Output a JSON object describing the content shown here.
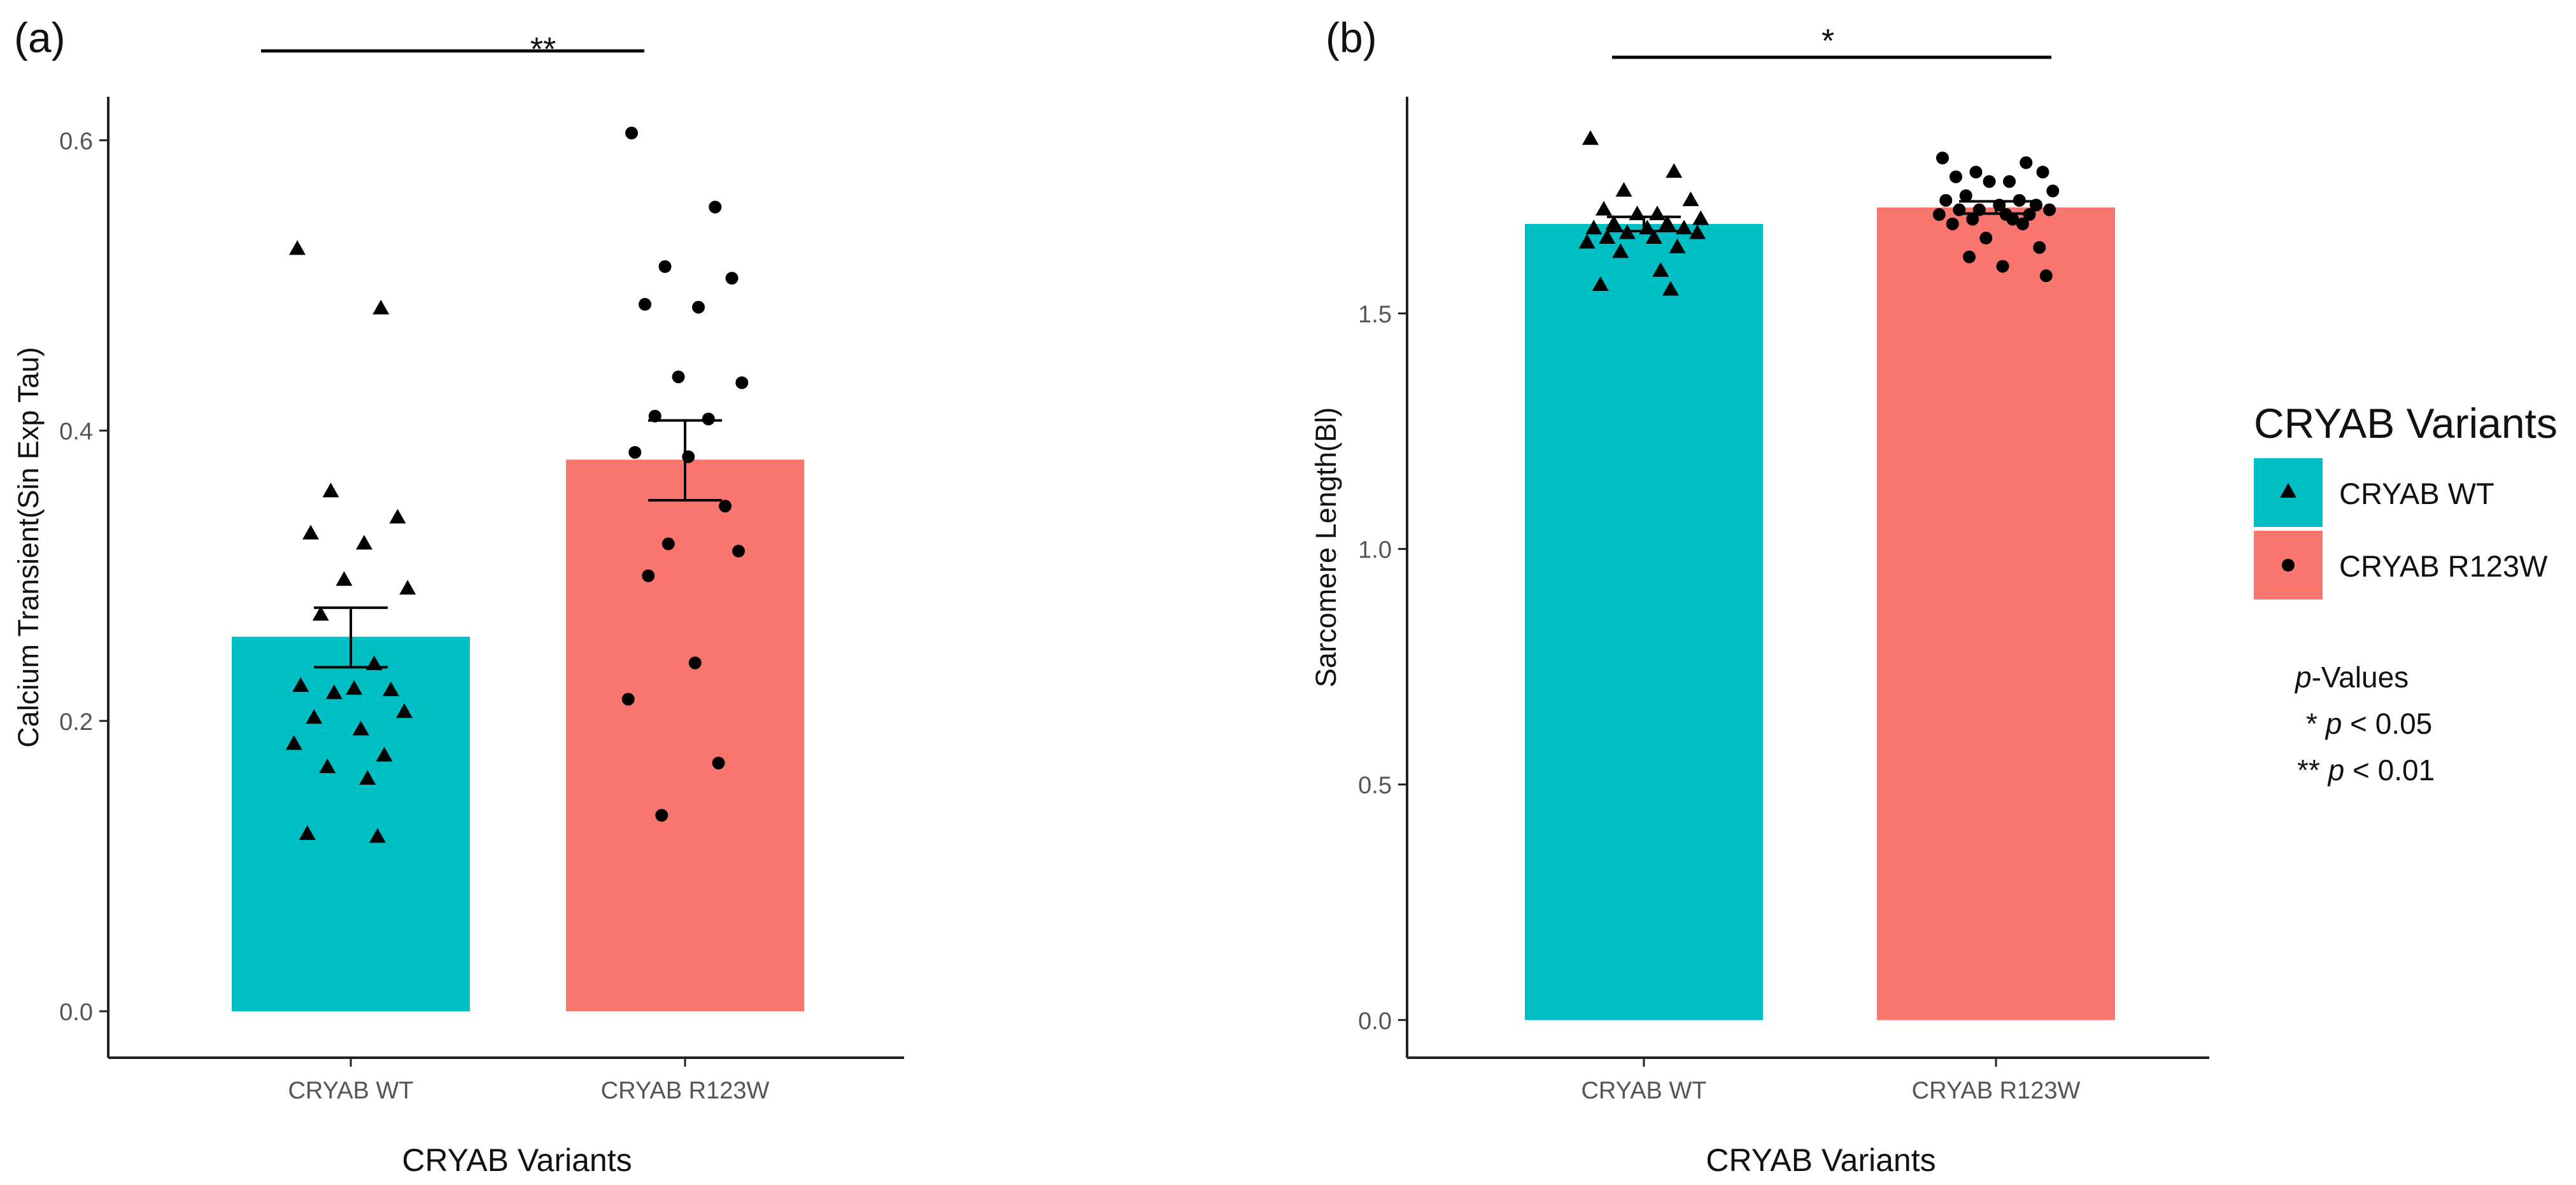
{
  "panel_labels": [
    "(a)",
    "(b)"
  ],
  "legend": {
    "title": "CRYAB Variants",
    "items": [
      {
        "label": "CRYAB WT",
        "color": "#00BFC4",
        "marker": "triangle"
      },
      {
        "label": "CRYAB R123W",
        "color": "#F8766D",
        "marker": "circle"
      }
    ]
  },
  "pvalue_note": {
    "title_italic": "p",
    "title_rest": "-Values",
    "lines": [
      {
        "stars": "*",
        "p": "p",
        "rest": " < 0.05"
      },
      {
        "stars": "**",
        "p": "p",
        "rest": " < 0.01"
      }
    ]
  },
  "colors": {
    "wt": "#00BFC4",
    "mut": "#F8766D",
    "axis": "#222222",
    "tick_text": "#555555",
    "point": "#000000"
  },
  "chart_data": [
    {
      "type": "bar",
      "panel": "(a)",
      "title": "",
      "xlabel": "CRYAB Variants",
      "ylabel": "Calcium Transient(Sin Exp Tau)",
      "ylim": [
        -0.032,
        0.63
      ],
      "yticks": [
        0.0,
        0.2,
        0.4,
        0.6
      ],
      "ytick_labels": [
        "0.0",
        "0.2",
        "0.4",
        "0.6"
      ],
      "categories": [
        "CRYAB WT",
        "CRYAB R123W"
      ],
      "values": [
        0.258,
        0.38
      ],
      "error_low": [
        0.237,
        0.352
      ],
      "error_high": [
        0.278,
        0.407
      ],
      "significance": "**",
      "points": [
        [
          0.525,
          0.484,
          0.358,
          0.34,
          0.329,
          0.322,
          0.297,
          0.291,
          0.273,
          0.239,
          0.224,
          0.222,
          0.221,
          0.219,
          0.206,
          0.202,
          0.194,
          0.184,
          0.176,
          0.168,
          0.16,
          0.122,
          0.12
        ],
        [
          0.605,
          0.554,
          0.513,
          0.505,
          0.487,
          0.485,
          0.437,
          0.433,
          0.41,
          0.408,
          0.385,
          0.382,
          0.348,
          0.322,
          0.317,
          0.3,
          0.24,
          0.215,
          0.171,
          0.135
        ]
      ]
    },
    {
      "type": "bar",
      "panel": "(b)",
      "title": "",
      "xlabel": "CRYAB Variants",
      "ylabel": "Sarcomere Length(Bl)",
      "ylim": [
        -0.08,
        1.96
      ],
      "yticks": [
        0.0,
        0.5,
        1.0,
        1.5
      ],
      "ytick_labels": [
        "0.0",
        "0.5",
        "1.0",
        "1.5"
      ],
      "categories": [
        "CRYAB WT",
        "CRYAB R123W"
      ],
      "values": [
        1.69,
        1.725
      ],
      "error_low": [
        1.675,
        1.712
      ],
      "error_high": [
        1.705,
        1.738
      ],
      "significance": "*",
      "points": [
        [
          1.87,
          1.8,
          1.76,
          1.74,
          1.72,
          1.71,
          1.71,
          1.7,
          1.69,
          1.69,
          1.68,
          1.68,
          1.68,
          1.67,
          1.67,
          1.66,
          1.66,
          1.65,
          1.64,
          1.63,
          1.59,
          1.56,
          1.55
        ],
        [
          1.83,
          1.82,
          1.8,
          1.8,
          1.79,
          1.78,
          1.78,
          1.76,
          1.75,
          1.74,
          1.74,
          1.73,
          1.73,
          1.72,
          1.72,
          1.72,
          1.71,
          1.71,
          1.71,
          1.7,
          1.7,
          1.69,
          1.69,
          1.66,
          1.64,
          1.62,
          1.6,
          1.58
        ]
      ]
    }
  ]
}
